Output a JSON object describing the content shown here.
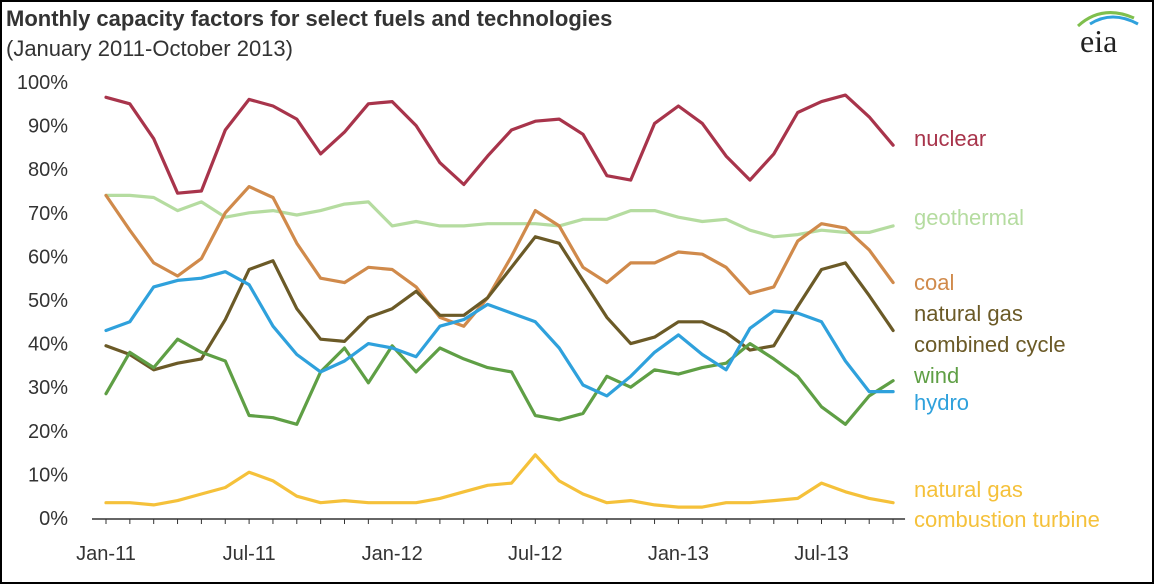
{
  "chart_data": {
    "type": "line",
    "title": "Monthly capacity factors for select fuels and technologies",
    "subtitle": "(January 2011-October 2013)",
    "logo_text": "eia",
    "y_ticks": [
      "0%",
      "10%",
      "20%",
      "30%",
      "40%",
      "50%",
      "60%",
      "70%",
      "80%",
      "90%",
      "100%"
    ],
    "ylim": [
      0,
      100
    ],
    "x_ticks": [
      {
        "label": "Jan-11",
        "index": 0
      },
      {
        "label": "Jul-11",
        "index": 6
      },
      {
        "label": "Jan-12",
        "index": 12
      },
      {
        "label": "Jul-12",
        "index": 18
      },
      {
        "label": "Jan-13",
        "index": 24
      },
      {
        "label": "Jul-13",
        "index": 30
      }
    ],
    "x": [
      "2011-01",
      "2011-02",
      "2011-03",
      "2011-04",
      "2011-05",
      "2011-06",
      "2011-07",
      "2011-08",
      "2011-09",
      "2011-10",
      "2011-11",
      "2011-12",
      "2012-01",
      "2012-02",
      "2012-03",
      "2012-04",
      "2012-05",
      "2012-06",
      "2012-07",
      "2012-08",
      "2012-09",
      "2012-10",
      "2012-11",
      "2012-12",
      "2013-01",
      "2013-02",
      "2013-03",
      "2013-04",
      "2013-05",
      "2013-06",
      "2013-07",
      "2013-08",
      "2013-09",
      "2013-10"
    ],
    "series": [
      {
        "key": "nuclear",
        "label_lines": [
          "nuclear"
        ],
        "color": "#a8344b",
        "values": [
          96.5,
          95,
          87,
          74.5,
          75,
          89,
          96,
          94.5,
          91.5,
          83.5,
          88.5,
          95,
          95.5,
          90,
          81.5,
          76.5,
          83,
          89,
          91,
          91.5,
          88,
          78.5,
          77.5,
          90.5,
          94.5,
          90.5,
          83,
          77.5,
          83.5,
          93,
          95.5,
          97,
          92,
          85.5
        ]
      },
      {
        "key": "geothermal",
        "label_lines": [
          "geothermal"
        ],
        "color": "#b5dca0",
        "values": [
          74,
          74,
          73.5,
          70.5,
          72.5,
          69,
          70,
          70.5,
          69.5,
          70.5,
          72,
          72.5,
          67,
          68,
          67,
          67,
          67.5,
          67.5,
          67.5,
          67,
          68.5,
          68.5,
          70.5,
          70.5,
          69,
          68,
          68.5,
          66,
          64.5,
          65,
          66,
          65.5,
          65.5,
          67
        ]
      },
      {
        "key": "coal",
        "label_lines": [
          "coal"
        ],
        "color": "#d08a4b",
        "values": [
          74,
          66,
          58.5,
          55.5,
          59.5,
          70,
          76,
          73.5,
          63,
          55,
          54,
          57.5,
          57,
          53,
          46,
          44,
          50.5,
          60,
          70.5,
          67,
          57.5,
          54,
          58.5,
          58.5,
          61,
          60.5,
          57.5,
          51.5,
          53,
          63.5,
          67.5,
          66.5,
          61.5,
          54
        ]
      },
      {
        "key": "ngcc",
        "label_lines": [
          "natural gas",
          "combined cycle"
        ],
        "color": "#6b5a27",
        "values": [
          39.5,
          37.5,
          34,
          35.5,
          36.5,
          45.5,
          57,
          59,
          48,
          41,
          40.5,
          46,
          48,
          52,
          46.5,
          46.5,
          50.5,
          57.5,
          64.5,
          63,
          54.5,
          46,
          40,
          41.5,
          45,
          45,
          42.5,
          38.5,
          39.5,
          48.5,
          57,
          58.5,
          51,
          43
        ]
      },
      {
        "key": "wind",
        "label_lines": [
          "wind"
        ],
        "color": "#5f9f45",
        "values": [
          28.5,
          38,
          34.5,
          41,
          38,
          36,
          23.5,
          23,
          21.5,
          33.5,
          39,
          31,
          39.5,
          33.5,
          39,
          36.5,
          34.5,
          33.5,
          23.5,
          22.5,
          24,
          32.5,
          30,
          34,
          33,
          34.5,
          35.5,
          40,
          36.5,
          32.5,
          25.5,
          21.5,
          28,
          31.5
        ]
      },
      {
        "key": "hydro",
        "label_lines": [
          "hydro"
        ],
        "color": "#2fa1dc",
        "values": [
          43,
          45,
          53,
          54.5,
          55,
          56.5,
          53.5,
          44,
          37.5,
          33.5,
          36,
          40,
          39,
          37,
          44,
          45.5,
          49,
          47,
          45,
          39,
          30.5,
          28,
          32.5,
          38,
          42,
          37.5,
          34,
          43.5,
          47.5,
          47,
          45,
          36,
          29,
          29
        ]
      },
      {
        "key": "ngct",
        "label_lines": [
          "natural gas",
          "combustion turbine"
        ],
        "color": "#f5c13a",
        "values": [
          3.5,
          3.5,
          3,
          4,
          5.5,
          7,
          10.5,
          8.5,
          5,
          3.5,
          4,
          3.5,
          3.5,
          3.5,
          4.5,
          6,
          7.5,
          8,
          14.5,
          8.5,
          5.5,
          3.5,
          4,
          3,
          2.5,
          2.5,
          3.5,
          3.5,
          4,
          4.5,
          8,
          6,
          4.5,
          3.5
        ]
      }
    ]
  }
}
